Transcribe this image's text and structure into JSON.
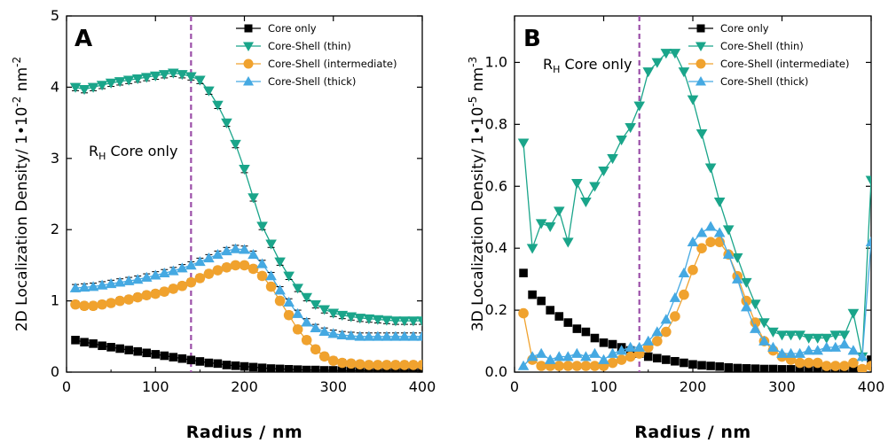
{
  "chart_data": [
    {
      "type": "line",
      "panel_label": "A",
      "xlabel": "Radius  / nm",
      "ylabel_prefix": "2D Localization Density/ 1•10",
      "ylabel_exp1": "-2",
      "ylabel_unit": " nm",
      "ylabel_exp2": "-2",
      "xlim": [
        0,
        400
      ],
      "ylim": [
        0,
        5
      ],
      "xticks": [
        0,
        100,
        200,
        300,
        400
      ],
      "yticks": [
        0,
        1,
        2,
        3,
        4,
        5
      ],
      "annotation": {
        "main": "R",
        "sub": "H",
        "rest": " Core only",
        "x": 140
      },
      "legend_position": "top-right",
      "error_bars": true,
      "series": [
        {
          "name": "Core only",
          "color": "#000000",
          "marker": "square",
          "draw_line": true,
          "x": [
            10,
            20,
            30,
            40,
            50,
            60,
            70,
            80,
            90,
            100,
            110,
            120,
            130,
            140,
            150,
            160,
            170,
            180,
            190,
            200,
            210,
            220,
            230,
            240,
            250,
            260,
            270,
            280,
            290,
            300,
            310,
            320,
            330,
            340,
            350,
            360,
            370,
            380,
            390,
            400
          ],
          "y": [
            0.45,
            0.42,
            0.4,
            0.37,
            0.35,
            0.33,
            0.31,
            0.29,
            0.27,
            0.25,
            0.23,
            0.21,
            0.19,
            0.17,
            0.15,
            0.13,
            0.12,
            0.1,
            0.09,
            0.08,
            0.07,
            0.06,
            0.05,
            0.045,
            0.04,
            0.035,
            0.03,
            0.03,
            0.025,
            0.025,
            0.02,
            0.02,
            0.02,
            0.02,
            0.02,
            0.02,
            0.02,
            0.02,
            0.02,
            0.02
          ]
        },
        {
          "name": "Core-Shell (thin)",
          "color": "#1aa58a",
          "marker": "triangle-down",
          "draw_line": true,
          "x": [
            10,
            20,
            30,
            40,
            50,
            60,
            70,
            80,
            90,
            100,
            110,
            120,
            130,
            140,
            150,
            160,
            170,
            180,
            190,
            200,
            210,
            220,
            230,
            240,
            250,
            260,
            270,
            280,
            290,
            300,
            310,
            320,
            330,
            340,
            350,
            360,
            370,
            380,
            390,
            400
          ],
          "y": [
            4.0,
            3.97,
            4.0,
            4.03,
            4.06,
            4.08,
            4.1,
            4.12,
            4.14,
            4.16,
            4.18,
            4.2,
            4.18,
            4.15,
            4.1,
            3.95,
            3.75,
            3.5,
            3.2,
            2.85,
            2.45,
            2.05,
            1.8,
            1.55,
            1.35,
            1.18,
            1.05,
            0.95,
            0.88,
            0.83,
            0.8,
            0.78,
            0.76,
            0.75,
            0.74,
            0.73,
            0.72,
            0.72,
            0.72,
            0.72
          ]
        },
        {
          "name": "Core-Shell (intermediate)",
          "color": "#f0a22e",
          "marker": "circle",
          "draw_line": true,
          "x": [
            10,
            20,
            30,
            40,
            50,
            60,
            70,
            80,
            90,
            100,
            110,
            120,
            130,
            140,
            150,
            160,
            170,
            180,
            190,
            200,
            210,
            220,
            230,
            240,
            250,
            260,
            270,
            280,
            290,
            300,
            310,
            320,
            330,
            340,
            350,
            360,
            370,
            380,
            390,
            400
          ],
          "y": [
            0.95,
            0.93,
            0.93,
            0.95,
            0.97,
            1.0,
            1.02,
            1.05,
            1.08,
            1.1,
            1.13,
            1.17,
            1.21,
            1.26,
            1.32,
            1.38,
            1.43,
            1.47,
            1.5,
            1.5,
            1.45,
            1.35,
            1.2,
            1.0,
            0.8,
            0.6,
            0.45,
            0.32,
            0.22,
            0.16,
            0.13,
            0.12,
            0.11,
            0.1,
            0.1,
            0.1,
            0.1,
            0.1,
            0.1,
            0.1
          ]
        },
        {
          "name": "Core-Shell (thick)",
          "color": "#45a9e2",
          "marker": "triangle-up",
          "draw_line": true,
          "x": [
            10,
            20,
            30,
            40,
            50,
            60,
            70,
            80,
            90,
            100,
            110,
            120,
            130,
            140,
            150,
            160,
            170,
            180,
            190,
            200,
            210,
            220,
            230,
            240,
            250,
            260,
            270,
            280,
            290,
            300,
            310,
            320,
            330,
            340,
            350,
            360,
            370,
            380,
            390,
            400
          ],
          "y": [
            1.18,
            1.19,
            1.2,
            1.22,
            1.24,
            1.26,
            1.28,
            1.3,
            1.33,
            1.36,
            1.39,
            1.42,
            1.46,
            1.5,
            1.55,
            1.6,
            1.65,
            1.7,
            1.73,
            1.72,
            1.65,
            1.52,
            1.35,
            1.15,
            0.98,
            0.82,
            0.7,
            0.62,
            0.57,
            0.54,
            0.52,
            0.51,
            0.5,
            0.5,
            0.5,
            0.5,
            0.5,
            0.5,
            0.5,
            0.5
          ]
        }
      ]
    },
    {
      "type": "line",
      "panel_label": "B",
      "xlabel": "Radius  / nm",
      "ylabel_prefix": "3D Localization Density/ 1•10",
      "ylabel_exp1": "-5",
      "ylabel_unit": " nm",
      "ylabel_exp2": "-3",
      "xlim": [
        0,
        400
      ],
      "ylim": [
        0,
        1.15
      ],
      "xticks": [
        0,
        100,
        200,
        300,
        400
      ],
      "yticks": [
        0.0,
        0.2,
        0.4,
        0.6,
        0.8,
        1.0
      ],
      "annotation": {
        "main": "R",
        "sub": "H",
        "rest": " Core only",
        "x": 140
      },
      "legend_position": "top-right",
      "error_bars": false,
      "series": [
        {
          "name": "Core only",
          "color": "#000000",
          "marker": "square",
          "draw_line": false,
          "x": [
            10,
            20,
            30,
            40,
            50,
            60,
            70,
            80,
            90,
            100,
            110,
            120,
            130,
            140,
            150,
            160,
            170,
            180,
            190,
            200,
            210,
            220,
            230,
            240,
            250,
            260,
            270,
            280,
            290,
            300,
            310,
            320,
            330,
            340,
            350,
            360,
            370,
            380,
            390,
            400
          ],
          "y": [
            0.32,
            0.25,
            0.23,
            0.2,
            0.18,
            0.16,
            0.14,
            0.13,
            0.11,
            0.095,
            0.09,
            0.08,
            0.07,
            0.06,
            0.05,
            0.045,
            0.04,
            0.035,
            0.03,
            0.025,
            0.022,
            0.02,
            0.018,
            0.015,
            0.013,
            0.012,
            0.011,
            0.01,
            0.01,
            0.009,
            0.009,
            0.008,
            0.008,
            0.008,
            0.008,
            0.008,
            0.008,
            0.008,
            0.008,
            0.04
          ]
        },
        {
          "name": "Core-Shell (thin)",
          "color": "#1aa58a",
          "marker": "triangle-down",
          "draw_line": true,
          "x": [
            10,
            20,
            30,
            40,
            50,
            60,
            70,
            80,
            90,
            100,
            110,
            120,
            130,
            140,
            150,
            160,
            170,
            180,
            190,
            200,
            210,
            220,
            230,
            240,
            250,
            260,
            270,
            280,
            290,
            300,
            310,
            320,
            330,
            340,
            350,
            360,
            370,
            380,
            390,
            400
          ],
          "y": [
            0.74,
            0.4,
            0.48,
            0.47,
            0.52,
            0.42,
            0.61,
            0.55,
            0.6,
            0.65,
            0.69,
            0.75,
            0.79,
            0.86,
            0.97,
            1.0,
            1.03,
            1.03,
            0.97,
            0.88,
            0.77,
            0.66,
            0.55,
            0.46,
            0.37,
            0.29,
            0.22,
            0.16,
            0.13,
            0.12,
            0.12,
            0.12,
            0.11,
            0.11,
            0.11,
            0.12,
            0.12,
            0.19,
            0.05,
            0.62
          ]
        },
        {
          "name": "Core-Shell (intermediate)",
          "color": "#f0a22e",
          "marker": "circle",
          "draw_line": true,
          "x": [
            10,
            20,
            30,
            40,
            50,
            60,
            70,
            80,
            90,
            100,
            110,
            120,
            130,
            140,
            150,
            160,
            170,
            180,
            190,
            200,
            210,
            220,
            230,
            240,
            250,
            260,
            270,
            280,
            290,
            300,
            310,
            320,
            330,
            340,
            350,
            360,
            370,
            380,
            390,
            400
          ],
          "y": [
            0.19,
            0.04,
            0.02,
            0.02,
            0.02,
            0.02,
            0.02,
            0.02,
            0.02,
            0.02,
            0.03,
            0.04,
            0.05,
            0.06,
            0.08,
            0.1,
            0.13,
            0.18,
            0.25,
            0.33,
            0.4,
            0.42,
            0.42,
            0.38,
            0.31,
            0.23,
            0.16,
            0.1,
            0.07,
            0.05,
            0.04,
            0.03,
            0.03,
            0.03,
            0.02,
            0.02,
            0.02,
            0.03,
            0.01,
            0.02
          ]
        },
        {
          "name": "Core-Shell (thick)",
          "color": "#45a9e2",
          "marker": "triangle-up",
          "draw_line": true,
          "x": [
            10,
            20,
            30,
            40,
            50,
            60,
            70,
            80,
            90,
            100,
            110,
            120,
            130,
            140,
            150,
            160,
            170,
            180,
            190,
            200,
            210,
            220,
            230,
            240,
            250,
            260,
            270,
            280,
            290,
            300,
            310,
            320,
            330,
            340,
            350,
            360,
            370,
            380,
            390,
            400
          ],
          "y": [
            0.02,
            0.05,
            0.06,
            0.04,
            0.05,
            0.05,
            0.06,
            0.05,
            0.06,
            0.04,
            0.06,
            0.07,
            0.08,
            0.08,
            0.1,
            0.13,
            0.17,
            0.24,
            0.32,
            0.42,
            0.45,
            0.47,
            0.45,
            0.38,
            0.3,
            0.21,
            0.14,
            0.1,
            0.08,
            0.06,
            0.06,
            0.06,
            0.07,
            0.07,
            0.08,
            0.08,
            0.09,
            0.07,
            0.05,
            0.42
          ]
        }
      ]
    }
  ]
}
